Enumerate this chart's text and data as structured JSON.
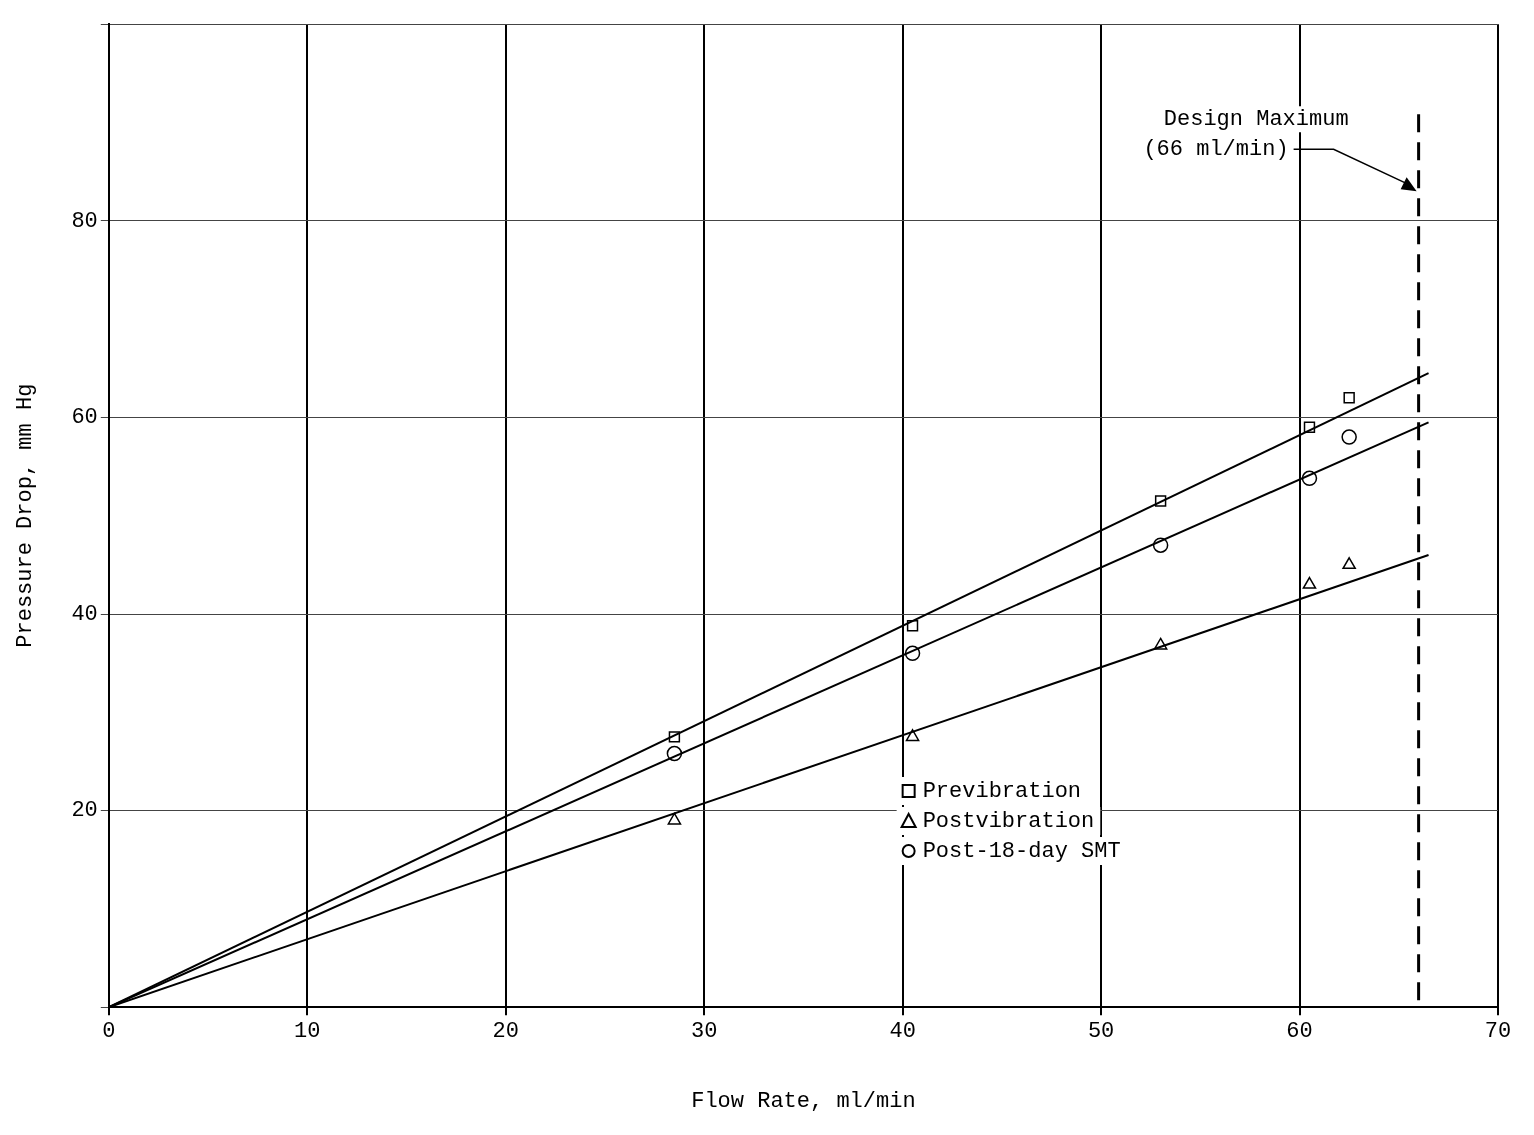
{
  "chart_data": {
    "type": "scatter",
    "xlabel": "Flow Rate, ml/min",
    "ylabel": "Pressure Drop, mm Hg",
    "xlim": [
      0,
      70
    ],
    "xticks": [
      0,
      10,
      20,
      30,
      40,
      50,
      60,
      70
    ],
    "ylim": [
      0,
      100
    ],
    "yticks": [
      {
        "value": 0,
        "label": null
      },
      20,
      40,
      60,
      80,
      {
        "value": 100,
        "label": null
      }
    ],
    "grid": true,
    "legend": "right",
    "series": [
      {
        "name": "Previbration",
        "color": "#000000",
        "marker": "square",
        "x": [
          28.5,
          40.5,
          53,
          60.5,
          62.5
        ],
        "values": [
          27.5,
          38.8,
          51.5,
          59,
          62
        ]
      },
      {
        "name": "Postvibration",
        "color": "#000000",
        "marker": "triangle",
        "x": [
          28.5,
          40.5,
          53,
          60.5,
          62.5
        ],
        "values": [
          19,
          27.5,
          36.8,
          43,
          45
        ]
      },
      {
        "name": "Post-18-day SMT",
        "color": "#000000",
        "marker": "circle",
        "x": [
          28.5,
          40.5,
          53,
          60.5,
          62.5
        ],
        "values": [
          25.8,
          36,
          47,
          53.8,
          58
        ]
      },
      {
        "type": "line",
        "color": "#000000",
        "marker": "none",
        "x": [
          0,
          66.5
        ],
        "values": [
          0,
          64.5
        ]
      },
      {
        "type": "line",
        "color": "#000000",
        "marker": "none",
        "x": [
          0,
          66.5
        ],
        "values": [
          0,
          46
        ]
      },
      {
        "type": "line",
        "color": "#000000",
        "marker": "none",
        "x": [
          0,
          66.5
        ],
        "values": [
          0,
          59.5
        ]
      }
    ],
    "ref_lines": [
      {
        "axis": "x",
        "value": 66,
        "label": "Design Maximum\n(66 ml/min)",
        "line_style": "dashed",
        "color": "#000000"
      }
    ]
  }
}
